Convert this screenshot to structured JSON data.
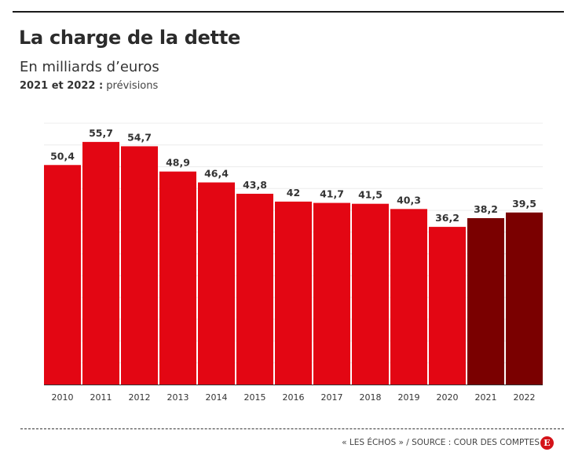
{
  "header": {
    "title": "La charge de la dette",
    "subtitle": "En milliards d’euros",
    "note_bold": "2021 et 2022 :",
    "note_text": " prévisions"
  },
  "footer": {
    "source": "« LES ÉCHOS » / SOURCE : COUR DES COMPTES",
    "logo_letter": "E"
  },
  "colors": {
    "actual": "#e30613",
    "forecast": "#7a0000",
    "logo": "#d41319"
  },
  "chart_data": {
    "type": "bar",
    "title": "La charge de la dette",
    "subtitle": "En milliards d’euros",
    "xlabel": "",
    "ylabel": "",
    "ylim": [
      0,
      60
    ],
    "grid": true,
    "categories": [
      "2010",
      "2011",
      "2012",
      "2013",
      "2014",
      "2015",
      "2016",
      "2017",
      "2018",
      "2019",
      "2020",
      "2021",
      "2022"
    ],
    "value_labels": [
      "50,4",
      "55,7",
      "54,7",
      "48,9",
      "46,4",
      "43,8",
      "42",
      "41,7",
      "41,5",
      "40,3",
      "36,2",
      "38,2",
      "39,5"
    ],
    "series": [
      {
        "values": [
          50.4,
          55.7,
          54.7,
          48.9,
          46.4,
          43.8,
          42,
          41.7,
          41.5,
          40.3,
          36.2,
          38.2,
          39.5
        ],
        "forecast": [
          false,
          false,
          false,
          false,
          false,
          false,
          false,
          false,
          false,
          false,
          false,
          true,
          true
        ]
      }
    ]
  }
}
